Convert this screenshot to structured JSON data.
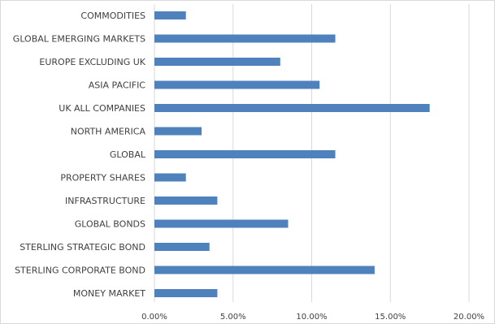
{
  "chart_data": {
    "type": "bar",
    "orientation": "horizontal",
    "categories": [
      "COMMODITIES",
      "GLOBAL EMERGING MARKETS",
      "EUROPE EXCLUDING UK",
      "ASIA PACIFIC",
      "UK ALL COMPANIES",
      "NORTH AMERICA",
      "GLOBAL",
      "PROPERTY SHARES",
      "INFRASTRUCTURE",
      "GLOBAL BONDS",
      "STERLING STRATEGIC BOND",
      "STERLING CORPORATE BOND",
      "MONEY MARKET"
    ],
    "values": [
      2.0,
      11.5,
      8.0,
      10.5,
      17.5,
      3.0,
      11.5,
      2.0,
      4.0,
      8.5,
      3.5,
      14.0,
      4.0
    ],
    "x_ticks": [
      "0.00%",
      "5.00%",
      "10.00%",
      "15.00%",
      "20.00%"
    ],
    "xlim": [
      0,
      20
    ],
    "grid": "vertical",
    "bar_color": "#4f81bd"
  }
}
